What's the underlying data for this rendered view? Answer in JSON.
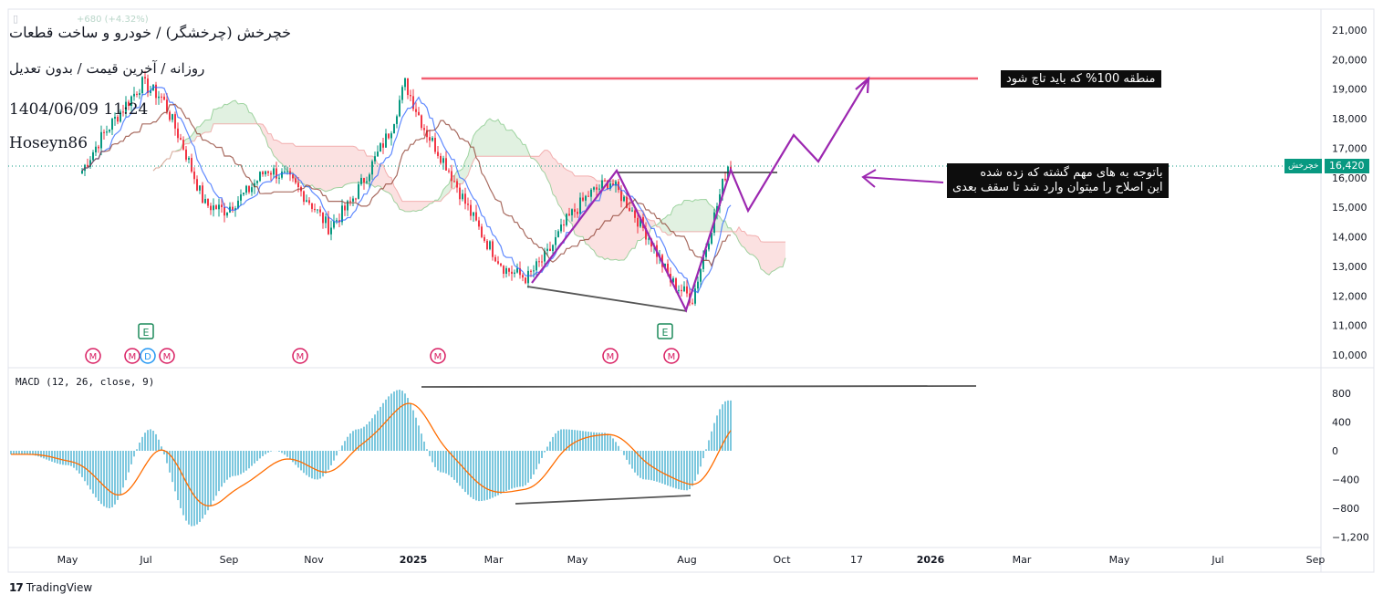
{
  "header": {
    "title": "خچرخش (چرخشگر) / خودرو و ساخت قطعات",
    "subtitle": "روزانه / آخرین قیمت / بدون تعدیل",
    "datetime": "1404/06/09 11:24",
    "author": "Hoseyn86",
    "ghost_change": "+680 (+4.32%)"
  },
  "annotations": {
    "target_box": "منطقه 100% که باید تاچ شود",
    "note_line1": "باتوجه به های مهم گشته که زده شده",
    "note_line2": "این اصلاح را میتوان وارد شد تا سقف بعدی"
  },
  "price_axis": {
    "ticks": [
      "21,000",
      "20,000",
      "19,000",
      "18,000",
      "17,000",
      "16,000",
      "15,000",
      "14,000",
      "13,000",
      "12,000",
      "11,000",
      "10,000"
    ],
    "tick_values": [
      21000,
      20000,
      19000,
      18000,
      17000,
      16000,
      15000,
      14000,
      13000,
      12000,
      11000,
      10000
    ],
    "current_price": "16,420",
    "symbol_tag": "خچرخش"
  },
  "macd_axis": {
    "label": "MACD (12, 26, close, 9)",
    "ticks": [
      "800",
      "400",
      "0",
      "−400",
      "−800",
      "−1,200"
    ],
    "tick_values": [
      800,
      400,
      0,
      -400,
      -800,
      -1200
    ]
  },
  "time_axis": {
    "labels": [
      "May",
      "Jul",
      "Sep",
      "Nov",
      "2025",
      "Mar",
      "May",
      "Aug",
      "Oct",
      "17",
      "2026",
      "Mar",
      "May",
      "Jul",
      "Sep"
    ],
    "bold": [
      "2025",
      "2026"
    ]
  },
  "event_markers": {
    "earnings": [
      "E",
      "E"
    ],
    "dividend": [
      "D"
    ],
    "other": [
      "M",
      "M",
      "M",
      "M",
      "M",
      "M",
      "M"
    ]
  },
  "colors": {
    "up": "#089981",
    "down": "#f23645",
    "macd": "#2962ff",
    "signal": "#ff6d00",
    "hist": "#26a2c9",
    "target_line": "#f25f72",
    "pattern": "#9c27b0",
    "trend": "#555555"
  },
  "footer": {
    "brand": "TradingView"
  },
  "chart_data": {
    "type": "line",
    "series": [
      {
        "name": "Close",
        "x": [
          "2024-04-01",
          "2024-04-20",
          "2024-05-10",
          "2024-05-25",
          "2024-06-10",
          "2024-06-25",
          "2024-07-10",
          "2024-07-25",
          "2024-08-10",
          "2024-08-25",
          "2024-09-10",
          "2024-09-25",
          "2024-10-10",
          "2024-10-25",
          "2024-11-10",
          "2024-11-25",
          "2024-12-10",
          "2024-12-25",
          "2025-01-05",
          "2025-01-20",
          "2025-02-05",
          "2025-02-20",
          "2025-03-05",
          "2025-03-20",
          "2025-04-05",
          "2025-04-20",
          "2025-05-05",
          "2025-05-20",
          "2025-06-05",
          "2025-06-20",
          "2025-07-05",
          "2025-07-20",
          "2025-08-05",
          "2025-08-20",
          "2025-08-31"
        ],
        "values": [
          16800,
          16200,
          16100,
          17300,
          18300,
          19200,
          18700,
          17100,
          15100,
          14900,
          15500,
          16300,
          16000,
          15300,
          14300,
          15100,
          16300,
          17600,
          19200,
          17600,
          16400,
          15000,
          13900,
          12900,
          12600,
          13400,
          14600,
          15400,
          15900,
          15000,
          13900,
          12500,
          11900,
          14500,
          16420
        ]
      }
    ],
    "macd": {
      "x": [
        "2024-04-01",
        "2024-05-01",
        "2024-06-01",
        "2024-07-01",
        "2024-08-01",
        "2024-09-01",
        "2024-10-01",
        "2024-11-01",
        "2024-12-01",
        "2025-01-01",
        "2025-02-01",
        "2025-03-01",
        "2025-04-01",
        "2025-05-01",
        "2025-06-01",
        "2025-07-01",
        "2025-08-01",
        "2025-08-31"
      ],
      "values": [
        -50,
        -200,
        -800,
        300,
        -1050,
        -350,
        0,
        -400,
        300,
        850,
        -300,
        -700,
        -500,
        300,
        250,
        -400,
        -550,
        700
      ]
    },
    "ylim": [
      10000,
      21000
    ],
    "macd_ylim": [
      -1200,
      900
    ]
  }
}
